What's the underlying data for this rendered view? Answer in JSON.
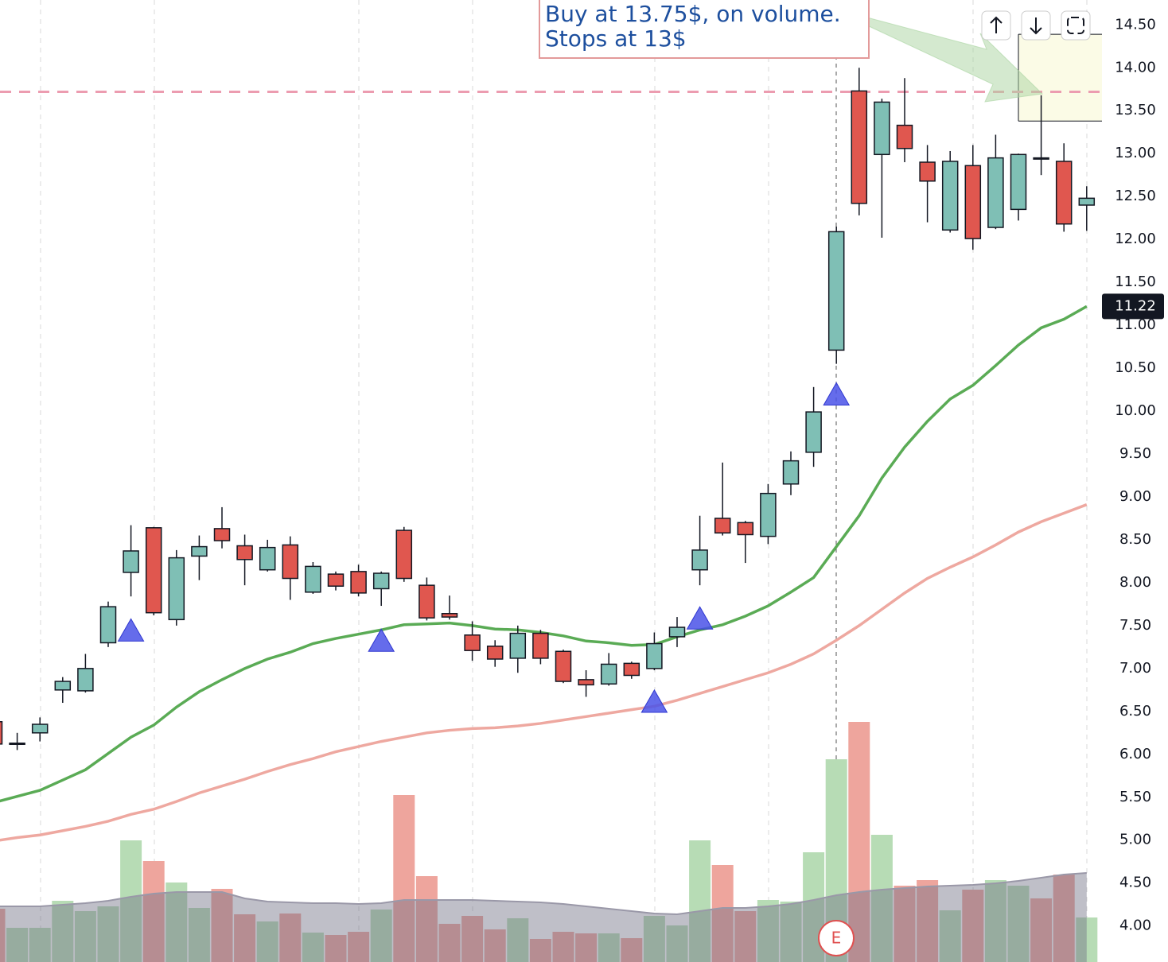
{
  "chart_data": {
    "type": "candlestick",
    "categories": [
      null,
      null,
      null,
      null,
      null,
      null,
      null,
      null,
      null,
      null,
      null,
      null,
      null,
      null,
      null,
      null,
      null,
      null,
      null,
      null,
      null,
      null,
      null,
      null,
      null,
      null,
      null,
      null,
      null,
      null,
      null,
      null,
      null,
      null,
      null,
      null,
      null,
      null,
      null,
      null,
      null,
      null,
      null,
      null,
      null,
      null,
      null,
      null,
      null
    ],
    "open": [
      6.38,
      6.12,
      6.25,
      6.75,
      6.74,
      7.3,
      8.12,
      8.64,
      7.57,
      8.31,
      8.63,
      8.43,
      8.15,
      8.44,
      7.89,
      8.1,
      8.13,
      7.93,
      8.61,
      7.97,
      7.64,
      7.39,
      7.26,
      7.12,
      7.41,
      7.2,
      6.87,
      6.82,
      7.06,
      7.0,
      7.37,
      8.15,
      8.75,
      8.7,
      8.54,
      9.15,
      9.52,
      10.71,
      13.73,
      12.99,
      13.33,
      12.9,
      12.11,
      12.86,
      12.14,
      12.35,
      12.95,
      12.91,
      12.4
    ],
    "high": [
      6.4,
      6.25,
      6.43,
      6.9,
      7.17,
      7.78,
      8.67,
      8.65,
      8.38,
      8.55,
      8.88,
      8.56,
      8.5,
      8.54,
      8.24,
      8.13,
      8.21,
      8.13,
      8.65,
      8.06,
      7.85,
      7.55,
      7.33,
      7.5,
      7.45,
      7.22,
      6.98,
      7.18,
      7.08,
      7.42,
      7.6,
      8.78,
      9.4,
      8.72,
      9.15,
      9.53,
      10.28,
      12.15,
      14.0,
      13.64,
      13.88,
      13.1,
      13.03,
      13.1,
      13.22,
      13.0,
      13.68,
      13.12,
      12.62
    ],
    "low": [
      6.1,
      6.05,
      6.15,
      6.6,
      6.72,
      7.25,
      7.84,
      7.62,
      7.5,
      8.03,
      8.4,
      7.97,
      8.13,
      7.8,
      7.87,
      7.91,
      7.84,
      7.73,
      8.01,
      7.56,
      7.57,
      7.09,
      7.02,
      6.95,
      7.05,
      6.83,
      6.67,
      6.8,
      6.88,
      6.98,
      7.25,
      7.97,
      8.55,
      8.23,
      8.45,
      9.02,
      9.35,
      10.55,
      12.28,
      12.02,
      12.9,
      12.2,
      12.08,
      11.88,
      12.12,
      12.22,
      12.75,
      12.09,
      12.1
    ],
    "close": [
      6.12,
      6.13,
      6.35,
      6.85,
      7.0,
      7.72,
      8.37,
      7.65,
      8.29,
      8.42,
      8.49,
      8.27,
      8.41,
      8.05,
      8.19,
      7.96,
      7.88,
      8.11,
      8.05,
      7.59,
      7.6,
      7.21,
      7.11,
      7.41,
      7.12,
      6.85,
      6.81,
      7.05,
      6.92,
      7.29,
      7.48,
      8.38,
      8.58,
      8.56,
      9.04,
      9.42,
      9.99,
      12.09,
      12.42,
      13.6,
      13.06,
      12.68,
      12.91,
      12.01,
      12.95,
      12.99,
      12.94,
      12.18,
      12.48
    ],
    "volume": [
      67,
      43,
      43,
      77,
      64,
      70,
      153,
      127,
      100,
      68,
      92,
      60,
      51,
      61,
      37,
      34,
      38,
      66,
      210,
      108,
      48,
      58,
      41,
      55,
      29,
      38,
      36,
      36,
      30,
      58,
      46,
      153,
      122,
      64,
      78,
      76,
      138,
      255,
      302,
      160,
      96,
      103,
      65,
      91,
      103,
      96,
      80,
      110,
      56
    ],
    "volume_ma": [
      70,
      70,
      70,
      72,
      74,
      77,
      82,
      86,
      88,
      88,
      88,
      80,
      76,
      75,
      74,
      74,
      73,
      74,
      78,
      78,
      78,
      78,
      77,
      76,
      75,
      73,
      70,
      67,
      64,
      61,
      60,
      64,
      68,
      68,
      70,
      73,
      78,
      84,
      88,
      91,
      93,
      95,
      96,
      97,
      99,
      102,
      106,
      110,
      112
    ],
    "volume_ylim": [
      0,
      1210
    ],
    "ma_fast": {
      "color": "#5aab55",
      "values": [
        5.44,
        5.51,
        5.58,
        5.7,
        5.82,
        6.01,
        6.2,
        6.34,
        6.55,
        6.73,
        6.87,
        7.0,
        7.11,
        7.19,
        7.29,
        7.35,
        7.4,
        7.45,
        7.51,
        7.52,
        7.53,
        7.5,
        7.46,
        7.45,
        7.42,
        7.38,
        7.32,
        7.3,
        7.27,
        7.28,
        7.37,
        7.45,
        7.51,
        7.61,
        7.73,
        7.89,
        8.06,
        8.42,
        8.78,
        9.22,
        9.58,
        9.88,
        10.14,
        10.3,
        10.53,
        10.77,
        10.97,
        11.07,
        11.22
      ]
    },
    "ma_slow": {
      "color": "#eea8a0",
      "values": [
        4.99,
        5.03,
        5.06,
        5.11,
        5.16,
        5.22,
        5.3,
        5.36,
        5.45,
        5.55,
        5.63,
        5.71,
        5.8,
        5.88,
        5.95,
        6.03,
        6.09,
        6.15,
        6.2,
        6.25,
        6.28,
        6.3,
        6.31,
        6.33,
        6.36,
        6.4,
        6.44,
        6.48,
        6.52,
        6.56,
        6.63,
        6.71,
        6.79,
        6.87,
        6.95,
        7.05,
        7.17,
        7.33,
        7.5,
        7.69,
        7.88,
        8.05,
        8.18,
        8.3,
        8.44,
        8.59,
        8.71,
        8.81,
        8.91
      ]
    },
    "signals": [
      null,
      null,
      null,
      null,
      null,
      null,
      7.44,
      null,
      null,
      null,
      null,
      null,
      null,
      null,
      null,
      null,
      null,
      7.32,
      null,
      null,
      null,
      null,
      null,
      null,
      null,
      null,
      null,
      null,
      null,
      6.61,
      null,
      7.58,
      null,
      null,
      null,
      null,
      null,
      10.19,
      null,
      null,
      null,
      null,
      null,
      null,
      null,
      null,
      null,
      null,
      null
    ],
    "up_color": "#7fbfb5",
    "down_color": "#e0574f",
    "volume_up_color": "#b7dcb5",
    "volume_down_color": "#eea59d",
    "signal_color": "#4a52e8",
    "buy_line": 13.72,
    "position_box": {
      "top": 14.39,
      "bottom": 13.38
    },
    "annotation": {
      "lines": [
        "Buy at 13.75$, on volume.",
        "Stops at 13$"
      ]
    },
    "earnings_marker": "E",
    "ylim": [
      3.58,
      14.79
    ],
    "yticks": [
      {
        "value": 4,
        "label": "4.00"
      },
      {
        "value": 4.5,
        "label": "4.50"
      },
      {
        "value": 5,
        "label": "5.00"
      },
      {
        "value": 5.5,
        "label": "5.50"
      },
      {
        "value": 6,
        "label": "6.00"
      },
      {
        "value": 6.5,
        "label": "6.50"
      },
      {
        "value": 7,
        "label": "7.00"
      },
      {
        "value": 7.5,
        "label": "7.50"
      },
      {
        "value": 8,
        "label": "8.00"
      },
      {
        "value": 8.5,
        "label": "8.50"
      },
      {
        "value": 9,
        "label": "9.00"
      },
      {
        "value": 9.5,
        "label": "9.50"
      },
      {
        "value": 10,
        "label": "10.00"
      },
      {
        "value": 10.5,
        "label": "10.50"
      },
      {
        "value": 11,
        "label": "11.00"
      },
      {
        "value": 11.5,
        "label": "11.50"
      },
      {
        "value": 12,
        "label": "12.00"
      },
      {
        "value": 12.5,
        "label": "12.50"
      },
      {
        "value": 13,
        "label": "13.00"
      },
      {
        "value": 13.5,
        "label": "13.50"
      },
      {
        "value": 14,
        "label": "14.00"
      },
      {
        "value": 14.5,
        "label": "14.50"
      }
    ],
    "grid": false
  }
}
